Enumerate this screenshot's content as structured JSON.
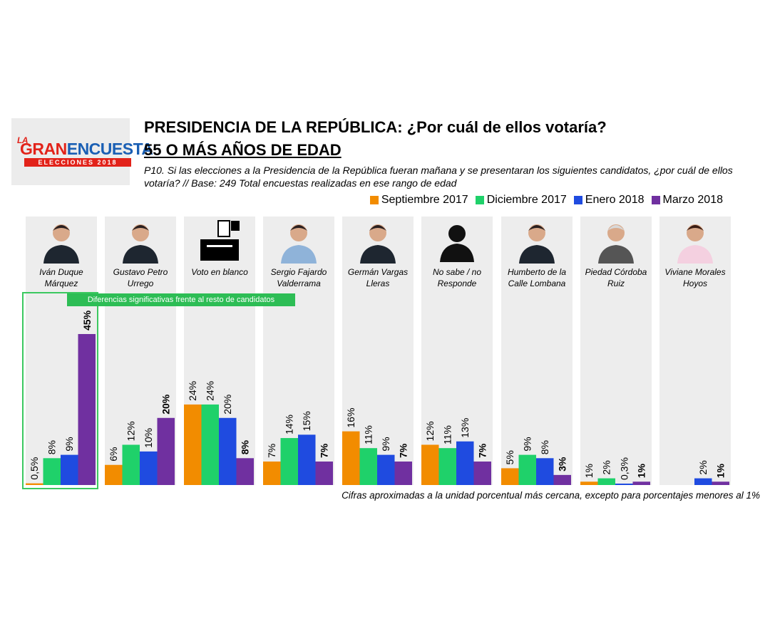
{
  "logo": {
    "la": "LA",
    "gran": "GRAN",
    "encuesta": "ENCUESTA",
    "sub": "ELECCIONES 2018"
  },
  "header": {
    "title": "PRESIDENCIA DE LA REPÚBLICA: ¿Por cuál de ellos votaría?",
    "subtitle": "55 O MÁS AÑOS DE EDAD",
    "question": "P10. Si las elecciones a la Presidencia de la República fueran mañana y se presentaran los siguientes candidatos, ¿por cuál de ellos votaría?  // Base: 249 Total encuestas realizadas en ese rango de edad"
  },
  "annotation": {
    "significance": "Diferencias significativas frente al resto de candidatos"
  },
  "footnote": "Cifras aproximadas a la unidad porcentual más cercana, excepto para porcentajes menores al 1%",
  "chart_data": {
    "type": "bar",
    "categories": [
      [
        "Iván Duque",
        "Márquez"
      ],
      [
        "Gustavo Petro",
        "Urrego"
      ],
      [
        "Voto en blanco"
      ],
      [
        "Sergio Fajardo",
        "Valderrama"
      ],
      [
        "Germán Vargas",
        "Lleras"
      ],
      [
        "No sabe / no",
        "Responde"
      ],
      [
        "Humberto de la",
        "Calle Lombana"
      ],
      [
        "Piedad Córdoba",
        "Ruiz"
      ],
      [
        "Viviane Morales",
        "Hoyos"
      ]
    ],
    "series": [
      {
        "name": "Septiembre 2017",
        "color": "#f28c00",
        "values": [
          0.5,
          6,
          24,
          7,
          16,
          12,
          5,
          1,
          null
        ],
        "labels": [
          "0,5%",
          "6%",
          "24%",
          "7%",
          "16%",
          "12%",
          "5%",
          "1%",
          ""
        ]
      },
      {
        "name": "Diciembre 2017",
        "color": "#1fd16a",
        "values": [
          8,
          12,
          24,
          14,
          11,
          11,
          9,
          2,
          null
        ],
        "labels": [
          "8%",
          "12%",
          "24%",
          "14%",
          "11%",
          "11%",
          "9%",
          "2%",
          ""
        ]
      },
      {
        "name": "Enero 2018",
        "color": "#1f4be0",
        "values": [
          9,
          10,
          20,
          15,
          9,
          13,
          8,
          0.3,
          2
        ],
        "labels": [
          "9%",
          "10%",
          "20%",
          "15%",
          "9%",
          "13%",
          "8%",
          "0,3%",
          "2%"
        ]
      },
      {
        "name": "Marzo 2018",
        "color": "#7030a0",
        "values": [
          45,
          20,
          8,
          7,
          7,
          7,
          3,
          1,
          1
        ],
        "labels": [
          "45%",
          "20%",
          "8%",
          "7%",
          "7%",
          "7%",
          "3%",
          "1%",
          "1%"
        ]
      }
    ],
    "bold_series": "Marzo 2018",
    "ylim": [
      0,
      45
    ]
  }
}
